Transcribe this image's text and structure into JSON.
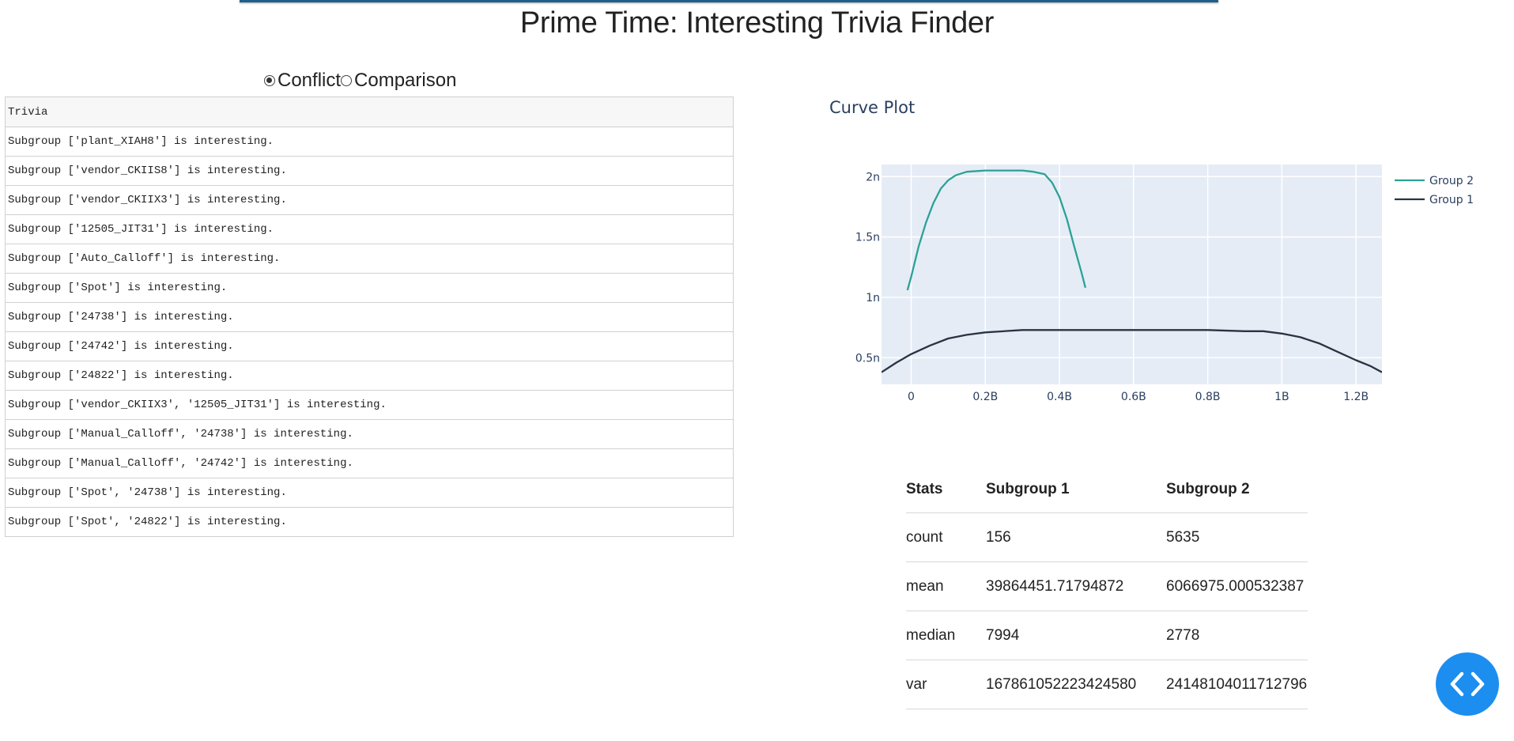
{
  "title": "Prime Time: Interesting Trivia Finder",
  "mode": {
    "options": [
      "Conflict",
      "Comparison"
    ],
    "selected": "Conflict"
  },
  "trivia": {
    "header": "Trivia",
    "rows": [
      "Subgroup ['plant_XIAH8'] is interesting.",
      "Subgroup ['vendor_CKIIS8'] is interesting.",
      "Subgroup ['vendor_CKIIX3'] is interesting.",
      "Subgroup ['12505_JIT31'] is interesting.",
      "Subgroup ['Auto_Calloff'] is interesting.",
      "Subgroup ['Spot'] is interesting.",
      "Subgroup ['24738'] is interesting.",
      "Subgroup ['24742'] is interesting.",
      "Subgroup ['24822'] is interesting.",
      "Subgroup ['vendor_CKIIX3', '12505_JIT31'] is interesting.",
      "Subgroup ['Manual_Calloff', '24738'] is interesting.",
      "Subgroup ['Manual_Calloff', '24742'] is interesting.",
      "Subgroup ['Spot', '24738'] is interesting.",
      "Subgroup ['Spot', '24822'] is interesting."
    ]
  },
  "chart_data": {
    "type": "line",
    "title": "Curve Plot",
    "xlabel": "",
    "ylabel": "",
    "xlim": [
      -0.08,
      1.27
    ],
    "ylim": [
      0.28,
      2.1
    ],
    "x_ticks": [
      {
        "value": 0,
        "label": "0"
      },
      {
        "value": 0.2,
        "label": "0.2B"
      },
      {
        "value": 0.4,
        "label": "0.4B"
      },
      {
        "value": 0.6,
        "label": "0.6B"
      },
      {
        "value": 0.8,
        "label": "0.8B"
      },
      {
        "value": 1.0,
        "label": "1B"
      },
      {
        "value": 1.2,
        "label": "1.2B"
      }
    ],
    "y_ticks": [
      {
        "value": 0.5,
        "label": "0.5n"
      },
      {
        "value": 1.0,
        "label": "1n"
      },
      {
        "value": 1.5,
        "label": "1.5n"
      },
      {
        "value": 2.0,
        "label": "2n"
      }
    ],
    "grid": true,
    "legend_position": "top-right",
    "series": [
      {
        "name": "Group 2",
        "color": "#2ca197",
        "x": [
          -0.01,
          0.0,
          0.02,
          0.04,
          0.06,
          0.08,
          0.1,
          0.12,
          0.15,
          0.2,
          0.25,
          0.3,
          0.33,
          0.36,
          0.38,
          0.4,
          0.42,
          0.44,
          0.46,
          0.47
        ],
        "y": [
          1.06,
          1.17,
          1.42,
          1.62,
          1.78,
          1.9,
          1.97,
          2.01,
          2.04,
          2.05,
          2.05,
          2.05,
          2.04,
          2.02,
          1.95,
          1.83,
          1.65,
          1.42,
          1.2,
          1.08
        ]
      },
      {
        "name": "Group 1",
        "color": "#2a3342",
        "x": [
          -0.08,
          -0.04,
          0.0,
          0.05,
          0.1,
          0.15,
          0.2,
          0.3,
          0.4,
          0.5,
          0.6,
          0.7,
          0.8,
          0.9,
          0.95,
          1.0,
          1.05,
          1.1,
          1.15,
          1.2,
          1.24,
          1.27
        ],
        "y": [
          0.38,
          0.46,
          0.53,
          0.6,
          0.66,
          0.69,
          0.71,
          0.73,
          0.73,
          0.73,
          0.73,
          0.73,
          0.73,
          0.72,
          0.72,
          0.7,
          0.67,
          0.62,
          0.55,
          0.48,
          0.43,
          0.38
        ]
      }
    ]
  },
  "stats": {
    "headers": [
      "Stats",
      "Subgroup 1",
      "Subgroup 2"
    ],
    "rows": [
      [
        "count",
        "156",
        "5635"
      ],
      [
        "mean",
        "39864451.71794872",
        "6066975.000532387"
      ],
      [
        "median",
        "7994",
        "2778"
      ],
      [
        "var",
        "167861052223424580",
        "24148104011712796"
      ]
    ]
  },
  "fab": {
    "icon": "code-icon",
    "color": "#1c8ef0"
  }
}
